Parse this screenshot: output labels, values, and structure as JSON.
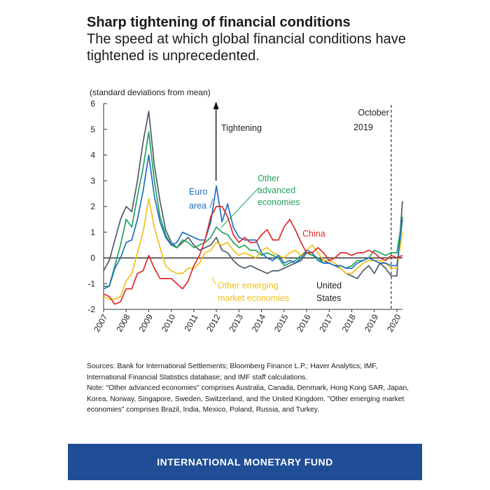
{
  "header": {
    "title": "Sharp tightening of financial conditions",
    "subtitle": "The speed at which global financial conditions have tightened is unprecedented."
  },
  "chart_data": {
    "type": "line",
    "ylabel": "(standard deviations from mean)",
    "ylim": [
      -2,
      6
    ],
    "yticks": [
      "6",
      "5",
      "4",
      "3",
      "2",
      "1",
      "0",
      "-1",
      "-2"
    ],
    "ytick_values": [
      6,
      5,
      4,
      3,
      2,
      1,
      0,
      -1,
      -2
    ],
    "xlim": [
      2007,
      2020.25
    ],
    "x_tick_labels": [
      "2007",
      "2008",
      "2009",
      "2010",
      "2011",
      "2012",
      "2013",
      "2014",
      "2015",
      "2016",
      "2017",
      "2018",
      "2019",
      "2020"
    ],
    "x_tick_values": [
      2007,
      2008,
      2009,
      2010,
      2011,
      2012,
      2013,
      2014,
      2015,
      2016,
      2017,
      2018,
      2019,
      2020
    ],
    "annotations": {
      "tightening": "Tightening",
      "tightening_arrow_x": 2012,
      "october_line": "October",
      "year_line": "2019",
      "october_x": 2019.75
    },
    "series": [
      {
        "name": "United States",
        "label_lines": [
          "United",
          "States"
        ],
        "color": "#4d5a6a",
        "x": [
          2007,
          2007.25,
          2007.5,
          2007.75,
          2008,
          2008.25,
          2008.5,
          2008.75,
          2009,
          2009.25,
          2009.5,
          2009.75,
          2010,
          2010.25,
          2010.5,
          2010.75,
          2011,
          2011.25,
          2011.5,
          2011.75,
          2012,
          2012.25,
          2012.5,
          2012.75,
          2013,
          2013.25,
          2013.5,
          2013.75,
          2014,
          2014.25,
          2014.5,
          2014.75,
          2015,
          2015.25,
          2015.5,
          2015.75,
          2016,
          2016.25,
          2016.5,
          2016.75,
          2017,
          2017.25,
          2017.5,
          2017.75,
          2018,
          2018.25,
          2018.5,
          2018.75,
          2019,
          2019.25,
          2019.5,
          2019.75,
          2020,
          2020.25
        ],
        "values": [
          -0.5,
          -0.1,
          0.7,
          1.5,
          2.0,
          1.8,
          3.0,
          4.5,
          5.7,
          3.6,
          2.2,
          1.1,
          0.6,
          0.4,
          0.6,
          0.8,
          0.5,
          0.3,
          0.4,
          0.5,
          0.8,
          0.3,
          0.2,
          -0.1,
          -0.3,
          -0.4,
          -0.3,
          -0.4,
          -0.5,
          -0.6,
          -0.5,
          -0.5,
          -0.4,
          -0.3,
          -0.2,
          -0.1,
          0.2,
          0.1,
          0.0,
          -0.1,
          -0.2,
          -0.3,
          -0.4,
          -0.6,
          -0.7,
          -0.8,
          -0.5,
          -0.3,
          -0.6,
          -0.2,
          -0.4,
          -0.7,
          -0.7,
          2.2
        ]
      },
      {
        "name": "Euro area",
        "label_lines": [
          "Euro",
          "area"
        ],
        "color": "#1f6fbd",
        "x": [
          2007,
          2007.25,
          2007.5,
          2007.75,
          2008,
          2008.25,
          2008.5,
          2008.75,
          2009,
          2009.25,
          2009.5,
          2009.75,
          2010,
          2010.25,
          2010.5,
          2010.75,
          2011,
          2011.25,
          2011.5,
          2011.75,
          2012,
          2012.25,
          2012.5,
          2012.75,
          2013,
          2013.25,
          2013.5,
          2013.75,
          2014,
          2014.25,
          2014.5,
          2014.75,
          2015,
          2015.25,
          2015.5,
          2015.75,
          2016,
          2016.25,
          2016.5,
          2016.75,
          2017,
          2017.25,
          2017.5,
          2017.75,
          2018,
          2018.25,
          2018.5,
          2018.75,
          2019,
          2019.25,
          2019.5,
          2019.75,
          2020,
          2020.25
        ],
        "values": [
          -1.2,
          -1.1,
          -0.4,
          0.0,
          0.6,
          0.7,
          1.5,
          2.6,
          4.0,
          2.4,
          1.4,
          0.8,
          0.5,
          0.6,
          1.0,
          0.9,
          0.8,
          0.7,
          0.7,
          1.4,
          2.8,
          1.4,
          2.1,
          1.2,
          0.8,
          0.7,
          0.7,
          0.7,
          0.2,
          0.0,
          -0.1,
          0.1,
          -0.2,
          -0.1,
          -0.2,
          0.0,
          0.3,
          0.2,
          -0.1,
          -0.2,
          -0.2,
          -0.3,
          -0.3,
          -0.4,
          -0.4,
          -0.2,
          -0.1,
          0.0,
          -0.1,
          -0.2,
          -0.2,
          -0.3,
          -0.3,
          1.5
        ]
      },
      {
        "name": "China",
        "label_lines": [
          "China"
        ],
        "color": "#dd2a2a",
        "x": [
          2007,
          2007.25,
          2007.5,
          2007.75,
          2008,
          2008.25,
          2008.5,
          2008.75,
          2009,
          2009.25,
          2009.5,
          2009.75,
          2010,
          2010.25,
          2010.5,
          2010.75,
          2011,
          2011.25,
          2011.5,
          2011.75,
          2012,
          2012.25,
          2012.5,
          2012.75,
          2013,
          2013.25,
          2013.5,
          2013.75,
          2014,
          2014.25,
          2014.5,
          2014.75,
          2015,
          2015.25,
          2015.5,
          2015.75,
          2016,
          2016.25,
          2016.5,
          2016.75,
          2017,
          2017.25,
          2017.5,
          2017.75,
          2018,
          2018.25,
          2018.5,
          2018.75,
          2019,
          2019.25,
          2019.5,
          2019.75,
          2020,
          2020.25
        ],
        "values": [
          -1.4,
          -1.5,
          -1.8,
          -1.7,
          -1.2,
          -1.2,
          -0.6,
          -0.5,
          0.1,
          -0.4,
          -0.8,
          -0.8,
          -0.8,
          -1.0,
          -1.2,
          -0.9,
          -0.3,
          0.1,
          0.7,
          1.6,
          2.0,
          2.0,
          1.6,
          0.9,
          0.6,
          0.8,
          0.6,
          0.6,
          0.9,
          1.1,
          0.7,
          0.7,
          1.2,
          1.5,
          1.1,
          0.6,
          0.2,
          0.2,
          0.4,
          0.2,
          -0.1,
          0.0,
          0.2,
          0.2,
          0.1,
          0.2,
          0.2,
          0.3,
          0.2,
          0.0,
          -0.1,
          0.1,
          0.0,
          0.1
        ]
      },
      {
        "name": "Other advanced economies",
        "label_lines": [
          "Other",
          "advanced",
          "economies"
        ],
        "color": "#21a35a",
        "x": [
          2007,
          2007.25,
          2007.5,
          2007.75,
          2008,
          2008.25,
          2008.5,
          2008.75,
          2009,
          2009.25,
          2009.5,
          2009.75,
          2010,
          2010.25,
          2010.5,
          2010.75,
          2011,
          2011.25,
          2011.5,
          2011.75,
          2012,
          2012.25,
          2012.5,
          2012.75,
          2013,
          2013.25,
          2013.5,
          2013.75,
          2014,
          2014.25,
          2014.5,
          2014.75,
          2015,
          2015.25,
          2015.5,
          2015.75,
          2016,
          2016.25,
          2016.5,
          2016.75,
          2017,
          2017.25,
          2017.5,
          2017.75,
          2018,
          2018.25,
          2018.5,
          2018.75,
          2019,
          2019.25,
          2019.5,
          2019.75,
          2020,
          2020.25
        ],
        "values": [
          -1.1,
          -1.1,
          -0.3,
          0.5,
          1.5,
          1.2,
          2.4,
          3.5,
          4.9,
          3.0,
          1.6,
          0.9,
          0.5,
          0.4,
          0.7,
          0.6,
          0.4,
          0.5,
          0.6,
          0.8,
          1.2,
          1.0,
          0.9,
          0.6,
          0.4,
          0.5,
          0.3,
          0.3,
          0.1,
          0.2,
          0.1,
          0.0,
          -0.3,
          -0.2,
          -0.1,
          0.1,
          0.2,
          0.1,
          0.0,
          -0.2,
          -0.2,
          -0.3,
          -0.3,
          -0.4,
          -0.3,
          -0.1,
          -0.1,
          0.0,
          0.3,
          0.2,
          0.1,
          0.2,
          0.2,
          1.6
        ]
      },
      {
        "name": "Other emerging market economies",
        "label_lines": [
          "Other emerging",
          "market economies"
        ],
        "color": "#f2c018",
        "x": [
          2007,
          2007.25,
          2007.5,
          2007.75,
          2008,
          2008.25,
          2008.5,
          2008.75,
          2009,
          2009.25,
          2009.5,
          2009.75,
          2010,
          2010.25,
          2010.5,
          2010.75,
          2011,
          2011.25,
          2011.5,
          2011.75,
          2012,
          2012.25,
          2012.5,
          2012.75,
          2013,
          2013.25,
          2013.5,
          2013.75,
          2014,
          2014.25,
          2014.5,
          2014.75,
          2015,
          2015.25,
          2015.5,
          2015.75,
          2016,
          2016.25,
          2016.5,
          2016.75,
          2017,
          2017.25,
          2017.5,
          2017.75,
          2018,
          2018.25,
          2018.5,
          2018.75,
          2019,
          2019.25,
          2019.5,
          2019.75,
          2020,
          2020.25
        ],
        "values": [
          -1.5,
          -1.6,
          -1.6,
          -1.5,
          -0.9,
          -0.6,
          0.2,
          1.0,
          2.3,
          1.2,
          0.4,
          -0.3,
          -0.5,
          -0.6,
          -0.6,
          -0.4,
          -0.4,
          -0.2,
          0.2,
          0.3,
          0.6,
          0.5,
          0.6,
          0.3,
          0.1,
          0.2,
          0.1,
          0.0,
          0.3,
          0.4,
          0.2,
          0.1,
          0.0,
          0.2,
          0.3,
          0.1,
          0.3,
          0.5,
          0.2,
          -0.1,
          -0.1,
          -0.2,
          -0.4,
          -0.6,
          -0.6,
          -0.4,
          -0.2,
          -0.1,
          -0.1,
          -0.1,
          -0.2,
          -0.4,
          -0.4,
          1.0
        ]
      }
    ]
  },
  "sources_note": {
    "sources": "Sources: Bank for International Settlements; Bloomberg Finance L.P.; Haver Analytics; IMF, International Financial Statistics database; and IMF staff calculations.",
    "note": "Note: \"Other advanced economies\" comprises Australia, Canada, Denmark, Hong Kong SAR, Japan, Korea, Norway, Singapore, Sweden, Switzerland, and the United Kingdom. \"Other emerging market economies\" comprises Brazil, India, Mexico, Poland, Russia, and Turkey."
  },
  "footer": {
    "label": "INTERNATIONAL MONETARY FUND",
    "bg_color": "#1f4e96"
  }
}
